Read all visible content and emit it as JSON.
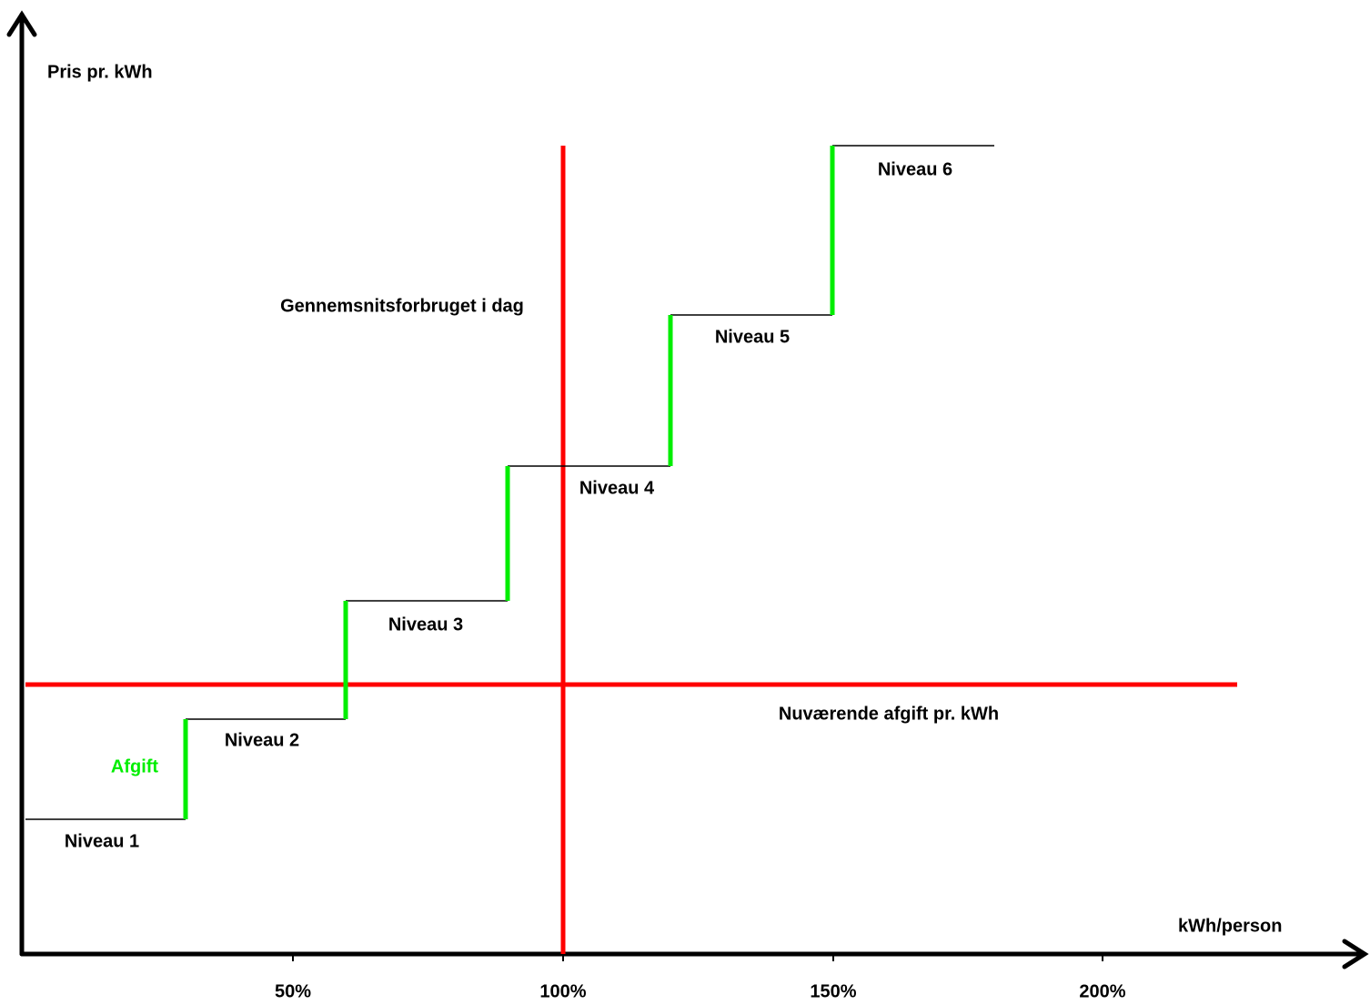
{
  "axis": {
    "y_label": "Pris pr. kWh",
    "x_label": "kWh/person",
    "x_ticks": [
      "50%",
      "100%",
      "150%",
      "200%"
    ]
  },
  "levels": [
    "Niveau 1",
    "Niveau 2",
    "Niveau 3",
    "Niveau 4",
    "Niveau 5",
    "Niveau 6"
  ],
  "annotations": {
    "average": "Gennemsnitsforbruget i dag",
    "current_tax": "Nuværende afgift pr. kWh",
    "tax": "Afgift"
  }
}
